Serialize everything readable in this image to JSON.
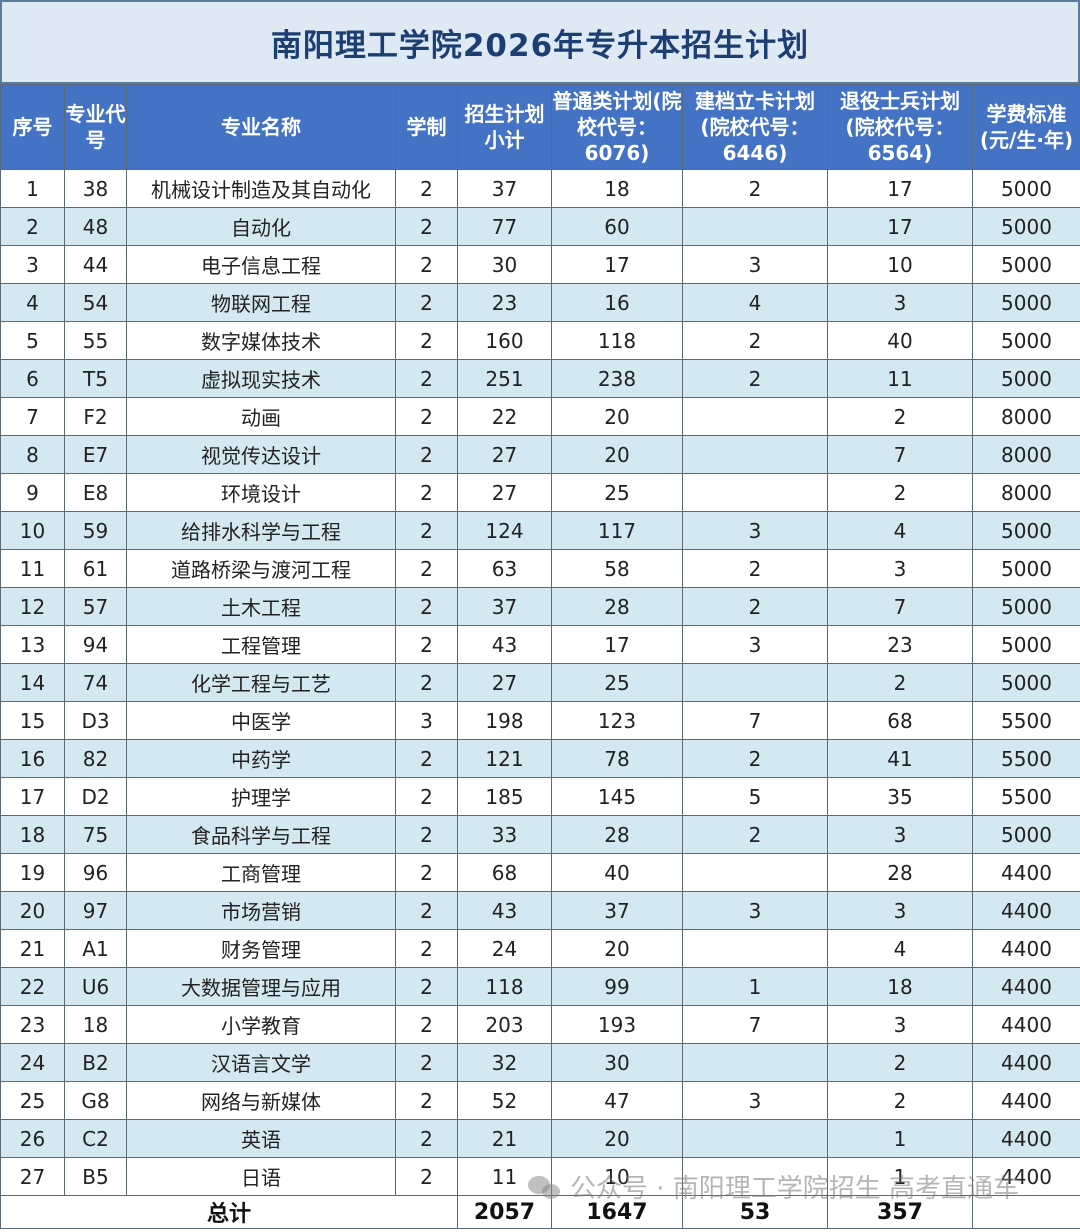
{
  "title": "南阳理工学院2026年专升本招生计划",
  "headers": [
    "序号",
    "专业代号",
    "专业名称",
    "学制",
    "招生计划小计",
    "普通类计划(院校代号：6076)",
    "建档立卡计划(院校代号：6446)",
    "退役士兵计划(院校代号：6564)",
    "学费标准(元/生·年)"
  ],
  "rows": [
    [
      "1",
      "38",
      "机械设计制造及其自动化",
      "2",
      "37",
      "18",
      "2",
      "17",
      "5000"
    ],
    [
      "2",
      "48",
      "自动化",
      "2",
      "77",
      "60",
      "",
      "17",
      "5000"
    ],
    [
      "3",
      "44",
      "电子信息工程",
      "2",
      "30",
      "17",
      "3",
      "10",
      "5000"
    ],
    [
      "4",
      "54",
      "物联网工程",
      "2",
      "23",
      "16",
      "4",
      "3",
      "5000"
    ],
    [
      "5",
      "55",
      "数字媒体技术",
      "2",
      "160",
      "118",
      "2",
      "40",
      "5000"
    ],
    [
      "6",
      "T5",
      "虚拟现实技术",
      "2",
      "251",
      "238",
      "2",
      "11",
      "5000"
    ],
    [
      "7",
      "F2",
      "动画",
      "2",
      "22",
      "20",
      "",
      "2",
      "8000"
    ],
    [
      "8",
      "E7",
      "视觉传达设计",
      "2",
      "27",
      "20",
      "",
      "7",
      "8000"
    ],
    [
      "9",
      "E8",
      "环境设计",
      "2",
      "27",
      "25",
      "",
      "2",
      "8000"
    ],
    [
      "10",
      "59",
      "给排水科学与工程",
      "2",
      "124",
      "117",
      "3",
      "4",
      "5000"
    ],
    [
      "11",
      "61",
      "道路桥梁与渡河工程",
      "2",
      "63",
      "58",
      "2",
      "3",
      "5000"
    ],
    [
      "12",
      "57",
      "土木工程",
      "2",
      "37",
      "28",
      "2",
      "7",
      "5000"
    ],
    [
      "13",
      "94",
      "工程管理",
      "2",
      "43",
      "17",
      "3",
      "23",
      "5000"
    ],
    [
      "14",
      "74",
      "化学工程与工艺",
      "2",
      "27",
      "25",
      "",
      "2",
      "5000"
    ],
    [
      "15",
      "D3",
      "中医学",
      "3",
      "198",
      "123",
      "7",
      "68",
      "5500"
    ],
    [
      "16",
      "82",
      "中药学",
      "2",
      "121",
      "78",
      "2",
      "41",
      "5500"
    ],
    [
      "17",
      "D2",
      "护理学",
      "2",
      "185",
      "145",
      "5",
      "35",
      "5500"
    ],
    [
      "18",
      "75",
      "食品科学与工程",
      "2",
      "33",
      "28",
      "2",
      "3",
      "5000"
    ],
    [
      "19",
      "96",
      "工商管理",
      "2",
      "68",
      "40",
      "",
      "28",
      "4400"
    ],
    [
      "20",
      "97",
      "市场营销",
      "2",
      "43",
      "37",
      "3",
      "3",
      "4400"
    ],
    [
      "21",
      "A1",
      "财务管理",
      "2",
      "24",
      "20",
      "",
      "4",
      "4400"
    ],
    [
      "22",
      "U6",
      "大数据管理与应用",
      "2",
      "118",
      "99",
      "1",
      "18",
      "4400"
    ],
    [
      "23",
      "18",
      "小学教育",
      "2",
      "203",
      "193",
      "7",
      "3",
      "4400"
    ],
    [
      "24",
      "B2",
      "汉语言文学",
      "2",
      "32",
      "30",
      "",
      "2",
      "4400"
    ],
    [
      "25",
      "G8",
      "网络与新媒体",
      "2",
      "52",
      "47",
      "3",
      "2",
      "4400"
    ],
    [
      "26",
      "C2",
      "英语",
      "2",
      "21",
      "20",
      "",
      "1",
      "4400"
    ],
    [
      "27",
      "B5",
      "日语",
      "2",
      "11",
      "10",
      "",
      "1",
      "4400"
    ]
  ],
  "total": {
    "label": "总计",
    "subtotal": "2057",
    "general": "1647",
    "poverty": "53",
    "veteran": "357"
  },
  "watermark": "公众号 · 南阳理工学院招生 高考直通车"
}
